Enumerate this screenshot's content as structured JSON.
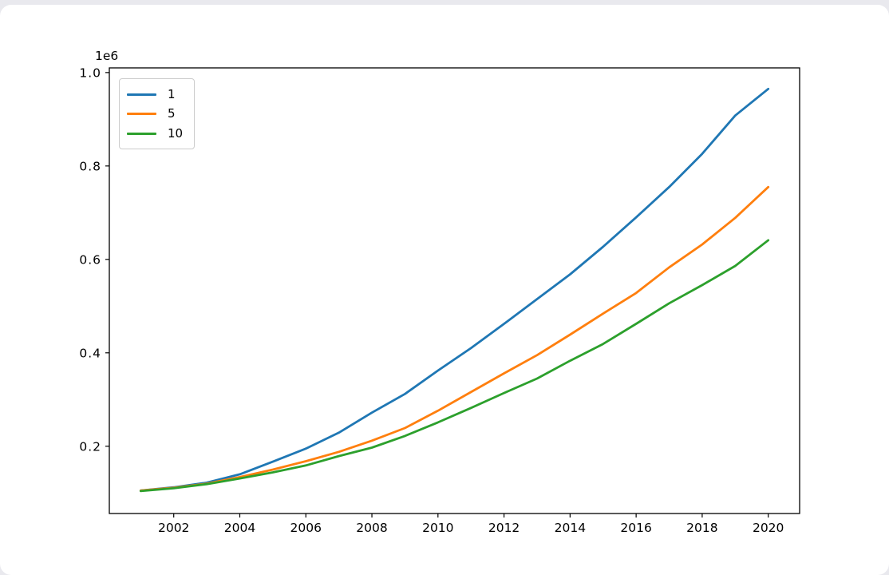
{
  "page": {
    "background_color": "#e9e9ee",
    "card_color": "#ffffff"
  },
  "chart_data": {
    "type": "line",
    "title": "",
    "xlabel": "",
    "ylabel": "",
    "y_offset_label": "1e6",
    "grid": false,
    "legend_position": "upper left",
    "xlim": [
      2000.05,
      2020.95
    ],
    "ylim": [
      56000,
      1010000
    ],
    "x": [
      2001,
      2002,
      2003,
      2004,
      2005,
      2006,
      2007,
      2008,
      2009,
      2010,
      2011,
      2012,
      2013,
      2014,
      2015,
      2016,
      2017,
      2018,
      2019,
      2020
    ],
    "series": [
      {
        "name": "1",
        "color": "#1f77b4",
        "values": [
          105000,
          112000,
          122000,
          140000,
          167000,
          195000,
          229000,
          272000,
          312000,
          362000,
          410000,
          462000,
          515000,
          568000,
          627000,
          690000,
          755000,
          826000,
          908000,
          965000
        ]
      },
      {
        "name": "5",
        "color": "#ff7f0e",
        "values": [
          105000,
          111000,
          120000,
          134000,
          150000,
          168000,
          188000,
          212000,
          239000,
          276000,
          316000,
          356000,
          395000,
          439000,
          484000,
          528000,
          583000,
          632000,
          689000,
          755000
        ]
      },
      {
        "name": "10",
        "color": "#2ca02c",
        "values": [
          104000,
          110000,
          119000,
          131000,
          144000,
          159000,
          179000,
          197000,
          222000,
          251000,
          282000,
          314000,
          345000,
          383000,
          419000,
          462000,
          506000,
          545000,
          586000,
          641000
        ]
      }
    ],
    "x_ticks": [
      2002,
      2004,
      2006,
      2008,
      2010,
      2012,
      2014,
      2016,
      2018,
      2020
    ],
    "x_tick_labels": [
      "2002",
      "2004",
      "2006",
      "2008",
      "2010",
      "2012",
      "2014",
      "2016",
      "2018",
      "2020"
    ],
    "y_ticks": [
      200000,
      400000,
      600000,
      800000,
      1000000
    ],
    "y_tick_labels": [
      "0.2",
      "0.4",
      "0.6",
      "0.8",
      "1.0"
    ]
  }
}
